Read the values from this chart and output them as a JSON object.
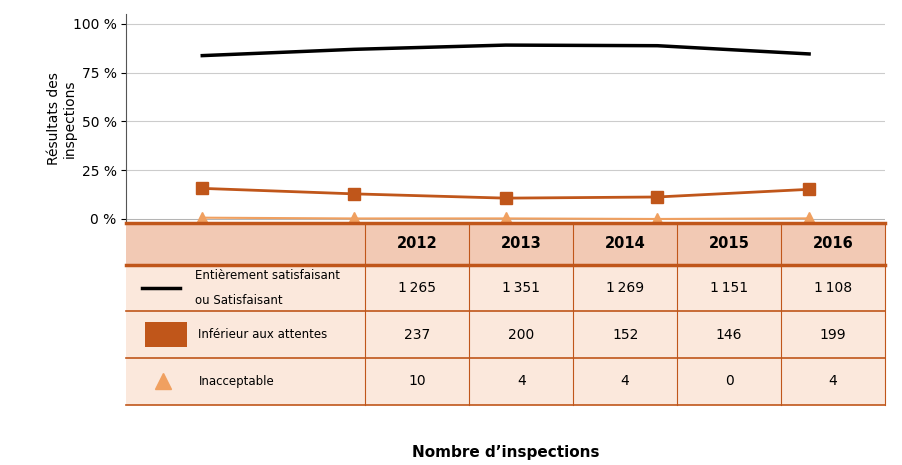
{
  "years": [
    2012,
    2013,
    2014,
    2015,
    2016
  ],
  "satisfaisant_pct": [
    83.66,
    86.88,
    89.05,
    88.74,
    84.52
  ],
  "inferieur_pct": [
    15.67,
    12.86,
    10.67,
    11.26,
    15.18
  ],
  "inacceptable_pct": [
    0.66,
    0.26,
    0.28,
    0.0,
    0.31
  ],
  "satisfaisant_counts": [
    1265,
    1351,
    1269,
    1151,
    1108
  ],
  "inferieur_counts": [
    237,
    200,
    152,
    146,
    199
  ],
  "inacceptable_counts": [
    10,
    4,
    4,
    0,
    4
  ],
  "color_black": "#000000",
  "color_orange": "#C0561A",
  "color_peach": "#F0A060",
  "table_header_bg": "#F2C9B4",
  "table_row_bg": "#FBE8DC",
  "table_border_color": "#C0561A",
  "ylabel": "Résultats des\ninspections",
  "xlabel": "Nombre d’inspections",
  "yticks": [
    0,
    25,
    50,
    75,
    100
  ],
  "ytick_labels": [
    "0 %",
    "25 %",
    "50 %",
    "75 %",
    "100 %"
  ]
}
